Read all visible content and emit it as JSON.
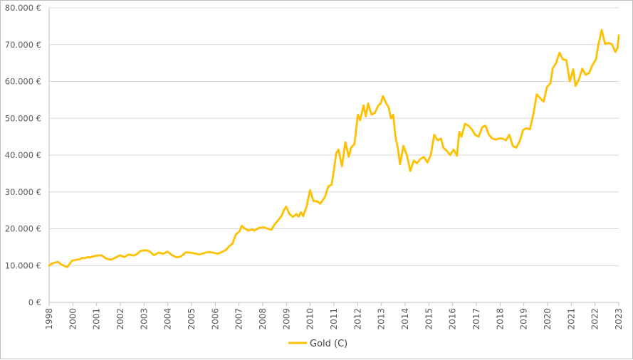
{
  "chart_data": {
    "type": "line",
    "title": "",
    "xlabel": "",
    "ylabel": "",
    "x_range": [
      1998,
      2023
    ],
    "ylim": [
      0,
      80000
    ],
    "grid": true,
    "legend_position": "bottom",
    "x_tick_labels": [
      "1998",
      "2000",
      "2001",
      "2002",
      "2003",
      "2004",
      "2005",
      "2006",
      "2007",
      "2008",
      "2009",
      "2010",
      "2011",
      "2012",
      "2013",
      "2014",
      "2015",
      "2016",
      "2017",
      "2018",
      "2019",
      "2020",
      "2021",
      "2022",
      "2023"
    ],
    "y_tick_labels": [
      "0 €",
      "10.000 €",
      "20.000 €",
      "30.000 €",
      "40.000 €",
      "50.000 €",
      "60.000 €",
      "70.000 €",
      "80.000 €"
    ],
    "y_tick_values": [
      0,
      10000,
      20000,
      30000,
      40000,
      50000,
      60000,
      70000,
      80000
    ],
    "series": [
      {
        "name": "Gold (C)",
        "color": "#ffc000",
        "x": [
          1998.0,
          1998.1,
          1998.25,
          1998.4,
          1998.5,
          1998.7,
          1998.8,
          1999.0,
          1999.2,
          1999.35,
          1999.45,
          1999.55,
          1999.7,
          1999.8,
          1999.95,
          2000.1,
          2000.3,
          2000.5,
          2000.7,
          2000.9,
          2001.1,
          2001.3,
          2001.5,
          2001.7,
          2001.85,
          2002.0,
          2002.2,
          2002.4,
          2002.6,
          2002.8,
          2003.0,
          2003.2,
          2003.4,
          2003.6,
          2003.8,
          2004.0,
          2004.2,
          2004.4,
          2004.6,
          2004.8,
          2005.0,
          2005.2,
          2005.4,
          2005.6,
          2005.75,
          2005.9,
          2006.05,
          2006.2,
          2006.35,
          2006.45,
          2006.6,
          2006.75,
          2006.9,
          2007.0,
          2007.2,
          2007.4,
          2007.6,
          2007.75,
          2007.9,
          2008.05,
          2008.2,
          2008.3,
          2008.4,
          2008.55,
          2008.7,
          2008.85,
          2008.95,
          2009.05,
          2009.15,
          2009.3,
          2009.45,
          2009.6,
          2009.75,
          2009.9,
          2010.0,
          2010.1,
          2010.25,
          2010.4,
          2010.5,
          2010.6,
          2010.7,
          2010.85,
          2011.0,
          2011.15,
          2011.25,
          2011.4,
          2011.55,
          2011.65,
          2011.8,
          2011.9,
          2012.0,
          2012.15,
          2012.3,
          2012.45,
          2012.55,
          2012.65,
          2012.8,
          2012.9,
          2013.0,
          2013.1,
          2013.2,
          2013.3,
          2013.4,
          2013.55,
          2013.7,
          2013.85,
          2014.0,
          2014.15,
          2014.3,
          2014.45,
          2014.6,
          2014.75,
          2014.9,
          2015.05,
          2015.2,
          2015.3,
          2015.45,
          2015.6,
          2015.75,
          2015.9,
          2016.0,
          2016.1,
          2016.25,
          2016.4,
          2016.55,
          2016.7,
          2016.85,
          2017.0,
          2017.15,
          2017.3,
          2017.45,
          2017.6,
          2017.75,
          2017.9,
          2018.05,
          2018.2,
          2018.35,
          2018.5,
          2018.65,
          2018.8,
          2018.95,
          2019.1,
          2019.25,
          2019.4,
          2019.55,
          2019.7,
          2019.85,
          2020.0,
          2020.1,
          2020.25,
          2020.4,
          2020.55,
          2020.7,
          2020.85,
          2021.0,
          2021.1,
          2021.25,
          2021.4,
          2021.55,
          2021.7,
          2021.85,
          2022.0,
          2022.1,
          2022.25,
          2022.4,
          2022.55,
          2022.7,
          2022.85,
          2022.95,
          2023.0
        ],
        "values": [
          10000,
          10500,
          10800,
          11000,
          10400,
          9800,
          9600,
          11300,
          11600,
          11700,
          12100,
          12000,
          12300,
          12200,
          12500,
          12700,
          12800,
          11900,
          11600,
          12100,
          12800,
          12300,
          13000,
          12700,
          13100,
          13900,
          14200,
          13900,
          12800,
          13500,
          13200,
          13800,
          12800,
          12200,
          12500,
          13600,
          13500,
          13300,
          13000,
          13400,
          13700,
          13500,
          13200,
          13700,
          14200,
          15200,
          16000,
          18500,
          19200,
          20800,
          20000,
          19500,
          19800,
          19500,
          20200,
          20400,
          20000,
          19700,
          21200,
          22300,
          23500,
          25000,
          26000,
          24000,
          23200,
          24000,
          23300,
          24500,
          23400,
          26000,
          30500,
          27500,
          27500,
          26800,
          27700,
          28500,
          31500,
          32000,
          36000,
          40500,
          41500,
          37000,
          43500,
          39500,
          42000,
          43000,
          51000,
          49500,
          53500,
          50500,
          54000,
          51000,
          51500,
          53500,
          54000,
          56000,
          54000,
          53000,
          50000,
          51000,
          45000,
          42000,
          37500,
          42500,
          40000,
          35700,
          38500,
          37800,
          39000,
          39500,
          38000,
          40000,
          45500,
          44000,
          44500,
          42000,
          41200,
          40000,
          41500,
          39800,
          46300,
          45000,
          48500,
          48000,
          47000,
          45500,
          45000,
          47500,
          48000,
          45500,
          44500,
          44200,
          44500,
          44500,
          44000,
          45500,
          42500,
          42000,
          43700,
          46800,
          47300,
          47000,
          51000,
          56500,
          55500,
          54500,
          58500,
          59500,
          63500,
          65000,
          67800,
          66000,
          65800,
          60000,
          63300,
          58800,
          60500,
          63500,
          61800,
          62300,
          64500,
          66000,
          69800,
          74000,
          70200,
          70500,
          70100,
          68000,
          69200,
          72500
        ]
      }
    ]
  }
}
